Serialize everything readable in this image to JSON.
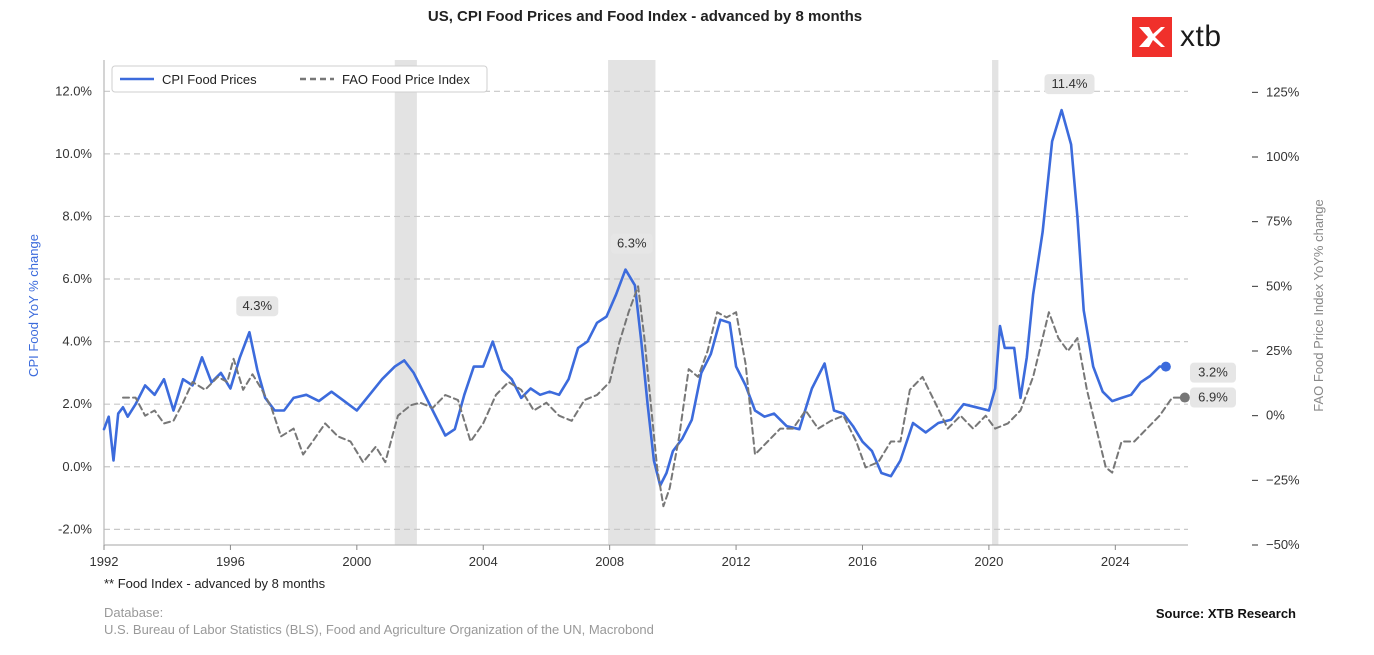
{
  "title": "US, CPI Food Prices and Food Index - advanced by 8 months",
  "brand": {
    "name": "xtb",
    "color": "#f0302b"
  },
  "footnote": "** Food Index - advanced by 8 months",
  "database_label": "Database:",
  "database_text": "U.S. Bureau of Labor Statistics (BLS), Food and Agriculture Organization of the UN, Macrobond",
  "source": "Source: XTB Research",
  "chart_data": {
    "type": "line",
    "title": "US, CPI Food Prices and Food Index - advanced by 8 months",
    "ylabel": "CPI Food YoY % change",
    "y2label": "FAO Food Price Index YoY% change",
    "xlim": [
      1992,
      2026.3
    ],
    "ylim": [
      -2.5,
      13
    ],
    "y2lim": [
      -50.0,
      137.5
    ],
    "y_ticks": [
      -2,
      0,
      2,
      4,
      6,
      8,
      10,
      12
    ],
    "y_tick_labels": [
      "-2.0%",
      "0.0%",
      "2.0%",
      "4.0%",
      "6.0%",
      "8.0%",
      "10.0%",
      "12.0%"
    ],
    "y2_ticks": [
      -50,
      -25,
      0,
      25,
      50,
      75,
      100,
      125
    ],
    "y2_tick_labels": [
      "−50%",
      "−25%",
      "0%",
      "25%",
      "50%",
      "75%",
      "100%",
      "125%"
    ],
    "x_ticks": [
      1992,
      1996,
      2000,
      2004,
      2008,
      2012,
      2016,
      2020,
      2024
    ],
    "x_tick_labels": [
      "1992",
      "1996",
      "2000",
      "2004",
      "2008",
      "2012",
      "2016",
      "2020",
      "2024"
    ],
    "grid": "horizontal dashed",
    "legend_position": "top-left",
    "recessions": [
      [
        2001.2,
        2001.9
      ],
      [
        2007.95,
        2009.45
      ],
      [
        2020.1,
        2020.3
      ]
    ],
    "series": [
      {
        "name": "CPI Food Prices",
        "axis": "left",
        "color": "#3c6bdc",
        "style": "solid",
        "x": [
          1992.0,
          1992.15,
          1992.3,
          1992.45,
          1992.6,
          1992.75,
          1993.0,
          1993.3,
          1993.6,
          1993.9,
          1994.2,
          1994.5,
          1994.8,
          1995.1,
          1995.4,
          1995.7,
          1996.0,
          1996.3,
          1996.6,
          1996.85,
          1997.1,
          1997.4,
          1997.7,
          1998.0,
          1998.4,
          1998.8,
          1999.2,
          1999.6,
          2000.0,
          2000.4,
          2000.8,
          2001.2,
          2001.5,
          2001.8,
          2002.1,
          2002.4,
          2002.8,
          2003.1,
          2003.4,
          2003.7,
          2004.0,
          2004.3,
          2004.6,
          2004.9,
          2005.2,
          2005.5,
          2005.8,
          2006.1,
          2006.4,
          2006.7,
          2007.0,
          2007.3,
          2007.6,
          2007.9,
          2008.2,
          2008.5,
          2008.8,
          2009.0,
          2009.2,
          2009.4,
          2009.6,
          2009.8,
          2010.0,
          2010.3,
          2010.6,
          2010.9,
          2011.2,
          2011.5,
          2011.8,
          2012.0,
          2012.3,
          2012.6,
          2012.9,
          2013.2,
          2013.6,
          2014.0,
          2014.4,
          2014.8,
          2015.1,
          2015.4,
          2015.7,
          2016.0,
          2016.3,
          2016.6,
          2016.9,
          2017.2,
          2017.6,
          2018.0,
          2018.4,
          2018.8,
          2019.2,
          2019.6,
          2020.0,
          2020.2,
          2020.35,
          2020.5,
          2020.8,
          2021.0,
          2021.2,
          2021.4,
          2021.7,
          2022.0,
          2022.3,
          2022.6,
          2022.8,
          2023.0,
          2023.3,
          2023.6,
          2023.9,
          2024.2,
          2024.5,
          2024.8,
          2025.1,
          2025.4,
          2025.6
        ],
        "values": [
          1.2,
          1.6,
          0.2,
          1.7,
          1.9,
          1.6,
          2.0,
          2.6,
          2.3,
          2.8,
          1.8,
          2.8,
          2.6,
          3.5,
          2.7,
          3.0,
          2.5,
          3.5,
          4.3,
          3.1,
          2.2,
          1.8,
          1.8,
          2.2,
          2.3,
          2.1,
          2.4,
          2.1,
          1.8,
          2.3,
          2.8,
          3.2,
          3.4,
          3.0,
          2.4,
          1.8,
          1.0,
          1.2,
          2.3,
          3.2,
          3.2,
          4.0,
          3.1,
          2.8,
          2.2,
          2.5,
          2.3,
          2.4,
          2.3,
          2.8,
          3.8,
          4.0,
          4.6,
          4.8,
          5.5,
          6.3,
          5.8,
          4.0,
          2.0,
          0.2,
          -0.6,
          -0.2,
          0.5,
          0.9,
          1.5,
          3.0,
          3.6,
          4.7,
          4.6,
          3.2,
          2.6,
          1.8,
          1.6,
          1.7,
          1.3,
          1.2,
          2.5,
          3.3,
          1.8,
          1.7,
          1.3,
          0.8,
          0.5,
          -0.2,
          -0.3,
          0.2,
          1.4,
          1.1,
          1.4,
          1.5,
          2.0,
          1.9,
          1.8,
          2.5,
          4.5,
          3.8,
          3.8,
          2.2,
          3.5,
          5.5,
          7.5,
          10.4,
          11.4,
          10.3,
          8.0,
          5.0,
          3.2,
          2.4,
          2.1,
          2.2,
          2.3,
          2.7,
          2.9,
          3.2,
          3.2
        ]
      },
      {
        "name": "FAO Food Price Index",
        "axis": "right",
        "color": "#777777",
        "style": "dashed",
        "x": [
          1992.6,
          1993.0,
          1993.3,
          1993.6,
          1993.9,
          1994.2,
          1994.5,
          1994.8,
          1995.2,
          1995.6,
          1995.9,
          1996.1,
          1996.4,
          1996.7,
          1997.0,
          1997.3,
          1997.6,
          1998.0,
          1998.3,
          1998.6,
          1999.0,
          1999.4,
          1999.8,
          2000.2,
          2000.6,
          2000.9,
          2001.3,
          2001.7,
          2002.0,
          2002.4,
          2002.8,
          2003.2,
          2003.6,
          2004.0,
          2004.4,
          2004.8,
          2005.2,
          2005.6,
          2006.0,
          2006.4,
          2006.8,
          2007.2,
          2007.6,
          2008.0,
          2008.3,
          2008.6,
          2008.9,
          2009.1,
          2009.3,
          2009.5,
          2009.7,
          2009.9,
          2010.2,
          2010.5,
          2010.8,
          2011.1,
          2011.4,
          2011.7,
          2012.0,
          2012.3,
          2012.6,
          2013.0,
          2013.4,
          2013.8,
          2014.2,
          2014.6,
          2015.0,
          2015.4,
          2015.8,
          2016.1,
          2016.5,
          2016.9,
          2017.2,
          2017.5,
          2017.9,
          2018.3,
          2018.7,
          2019.1,
          2019.5,
          2019.9,
          2020.2,
          2020.6,
          2021.0,
          2021.4,
          2021.7,
          2021.9,
          2022.2,
          2022.5,
          2022.8,
          2023.1,
          2023.4,
          2023.7,
          2023.9,
          2024.2,
          2024.6,
          2025.0,
          2025.4,
          2025.8,
          2026.2
        ],
        "values": [
          7,
          7,
          0,
          2,
          -3,
          -2,
          5,
          13,
          10,
          15,
          13,
          22,
          10,
          16,
          10,
          3,
          -8,
          -5,
          -15,
          -10,
          -3,
          -8,
          -10,
          -18,
          -12,
          -18,
          0,
          4,
          5,
          3,
          8,
          6,
          -10,
          -3,
          8,
          13,
          10,
          2,
          5,
          0,
          -2,
          6,
          8,
          13,
          28,
          40,
          50,
          30,
          5,
          -20,
          -35,
          -28,
          -8,
          18,
          15,
          25,
          40,
          38,
          40,
          20,
          -15,
          -10,
          -5,
          -5,
          2,
          -5,
          -2,
          0,
          -10,
          -20,
          -18,
          -10,
          -10,
          10,
          15,
          5,
          -5,
          0,
          -5,
          0,
          -5,
          -3,
          2,
          15,
          30,
          40,
          30,
          25,
          30,
          10,
          -5,
          -20,
          -22,
          -10,
          -10,
          -5,
          0,
          7,
          7
        ]
      }
    ],
    "annotations": [
      {
        "label": "4.3%",
        "x": 1996.85,
        "y": 4.3,
        "series": "CPI Food Prices"
      },
      {
        "label": "6.3%",
        "x": 2008.7,
        "y": 6.3,
        "series": "CPI Food Prices"
      },
      {
        "label": "11.4%",
        "x": 2022.55,
        "y": 11.4,
        "series": "CPI Food Prices"
      },
      {
        "label": "3.2%",
        "x": 2025.6,
        "y": 3.2,
        "series": "CPI Food Prices",
        "kind": "end"
      },
      {
        "label": "6.9%",
        "x": 2026.2,
        "y": 7,
        "series": "FAO Food Price Index",
        "kind": "end"
      }
    ]
  }
}
